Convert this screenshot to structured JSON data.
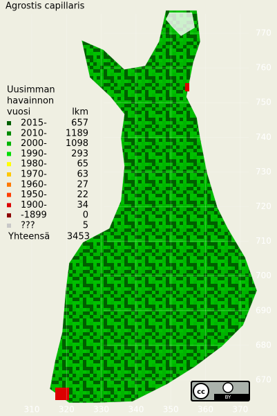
{
  "title": "Agrostis capillaris",
  "legend": {
    "heading": [
      "Uusimman",
      "havainnon",
      "vuosi"
    ],
    "count_heading": "lkm",
    "rows": [
      {
        "label": "2015-",
        "count": 657,
        "color": "#005f00"
      },
      {
        "label": "2010-",
        "count": 1189,
        "color": "#008a00"
      },
      {
        "label": "2000-",
        "count": 1098,
        "color": "#00b400"
      },
      {
        "label": "1990-",
        "count": 293,
        "color": "#00dc00"
      },
      {
        "label": "1980-",
        "count": 65,
        "color": "#ffff00"
      },
      {
        "label": "1970-",
        "count": 63,
        "color": "#ffc800"
      },
      {
        "label": "1960-",
        "count": 27,
        "color": "#ff7800"
      },
      {
        "label": "1950-",
        "count": 22,
        "color": "#ff3c00"
      },
      {
        "label": "1900-",
        "count": 34,
        "color": "#dc0000"
      },
      {
        "label": "-1899",
        "count": 0,
        "color": "#8c0000"
      },
      {
        "label": "???",
        "count": 5,
        "color": "#c8c8c8"
      }
    ],
    "total_label": "Yhteensä",
    "total": 3453
  },
  "grid": {
    "y_labels": [
      770,
      760,
      750,
      740,
      730,
      720,
      710,
      700,
      690,
      680,
      670
    ],
    "x_labels": [
      310,
      320,
      330,
      340,
      350,
      360,
      370
    ]
  },
  "badge": {
    "cc": "cc",
    "by": "BY"
  }
}
